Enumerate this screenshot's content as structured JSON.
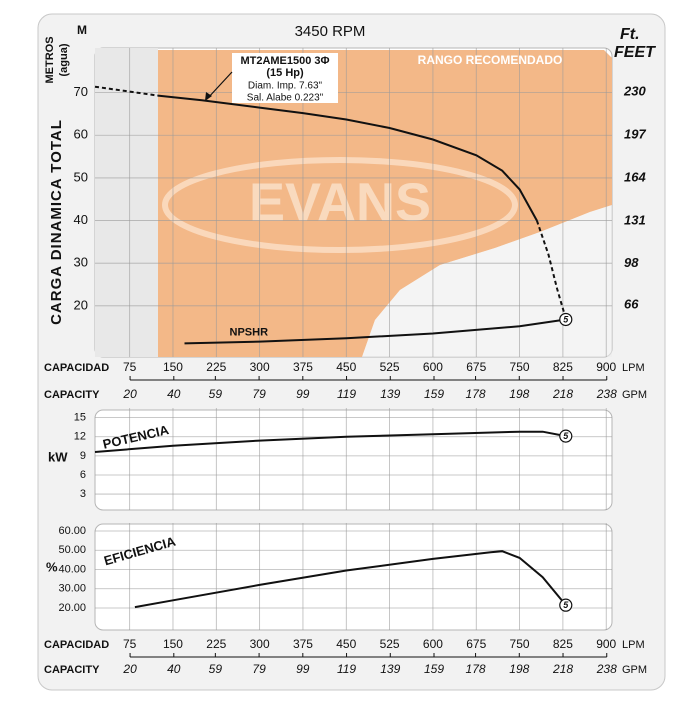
{
  "chart_data": [
    {
      "type": "line",
      "title": "3450 RPM",
      "y_label": "CARGA DINAMICA TOTAL",
      "y_unit": "M",
      "y_unit_name": [
        "METROS",
        "(agua)"
      ],
      "y2_unit": [
        "Ft.",
        "FEET"
      ],
      "x_label": "CAPACIDAD",
      "x_unit": "LPM",
      "x2_label": "CAPACITY",
      "x2_unit": "GPM",
      "xlim": [
        15,
        910
      ],
      "xticks": [
        75,
        150,
        225,
        300,
        375,
        450,
        525,
        600,
        675,
        750,
        825,
        900
      ],
      "x2lim": [
        3.96,
        240.4
      ],
      "x2ticks": [
        20,
        40,
        59,
        79,
        99,
        119,
        139,
        159,
        178,
        198,
        218,
        238
      ],
      "ylim": [
        8,
        80
      ],
      "yticks": [
        70,
        60,
        50,
        40,
        30,
        20
      ],
      "y2lim": [
        26.2,
        262.5
      ],
      "y2ticks": [
        230,
        197,
        164,
        131,
        98,
        66
      ],
      "grid": true,
      "region_label": "RANGO RECOMENDADO",
      "watermark": "EVANS",
      "annotation": [
        "MT2AME1500 3Φ",
        "(15 Hp)",
        "Diam. Imp. 7.63\"",
        "Sal. Alabe 0.223\""
      ],
      "end_marker": "5",
      "series": [
        {
          "color": "#111111",
          "dashed": true,
          "x": [
            15,
            124
          ],
          "values": [
            71.4,
            69.3
          ]
        },
        {
          "color": "#111111",
          "dashed": false,
          "x": [
            124,
            200,
            300,
            375,
            450,
            525,
            600,
            675,
            720,
            750,
            780
          ],
          "values": [
            69.3,
            68.2,
            66.5,
            65.2,
            63.7,
            61.7,
            59,
            55.3,
            51.7,
            47.3,
            40
          ]
        },
        {
          "color": "#111111",
          "dashed": true,
          "x": [
            780,
            800,
            815,
            830
          ],
          "values": [
            40,
            32,
            24,
            17
          ]
        },
        {
          "name": "NPSHR",
          "color": "#111111",
          "dashed": false,
          "x": [
            170,
            300,
            450,
            600,
            750,
            830
          ],
          "values": [
            11.2,
            11.6,
            12.4,
            13.5,
            15.2,
            16.8
          ]
        }
      ]
    },
    {
      "type": "line",
      "label": "POTENCIA",
      "y_unit": "kW",
      "xlim": [
        15,
        910
      ],
      "xticks": [
        75,
        150,
        225,
        300,
        375,
        450,
        525,
        600,
        675,
        750,
        825,
        900
      ],
      "ylim": [
        0.5,
        16.2
      ],
      "yticks": [
        15,
        12,
        9,
        6,
        3
      ],
      "grid": true,
      "end_marker": "5",
      "series": [
        {
          "color": "#111111",
          "dashed": false,
          "x": [
            15,
            150,
            300,
            450,
            600,
            750,
            790,
            830
          ],
          "values": [
            9.6,
            10.6,
            11.4,
            12.0,
            12.4,
            12.8,
            12.8,
            12.1
          ]
        }
      ]
    },
    {
      "type": "line",
      "label": "EFICIENCIA",
      "y_unit": "%",
      "x_label": "CAPACIDAD",
      "x_unit": "LPM",
      "x2_label": "CAPACITY",
      "x2_unit": "GPM",
      "xlim": [
        15,
        910
      ],
      "xticks": [
        75,
        150,
        225,
        300,
        375,
        450,
        525,
        600,
        675,
        750,
        825,
        900
      ],
      "x2lim": [
        3.96,
        240.4
      ],
      "x2ticks": [
        20,
        40,
        59,
        79,
        99,
        119,
        139,
        159,
        178,
        198,
        218,
        238
      ],
      "ylim": [
        8.6,
        63.1
      ],
      "yticks": [
        {
          "value": 60,
          "label": "60.00"
        },
        {
          "value": 50,
          "label": "50.00"
        },
        {
          "value": 40,
          "label": "40.00"
        },
        {
          "value": 30,
          "label": "30.00"
        },
        {
          "value": 20,
          "label": "20.00"
        }
      ],
      "grid": true,
      "end_marker": "5",
      "series": [
        {
          "color": "#111111",
          "dashed": false,
          "x": [
            84,
            150,
            300,
            450,
            600,
            700,
            720,
            750,
            790,
            830
          ],
          "values": [
            20.5,
            24,
            32,
            39.5,
            45.5,
            49,
            49.5,
            46,
            36,
            21.5
          ]
        }
      ]
    }
  ]
}
